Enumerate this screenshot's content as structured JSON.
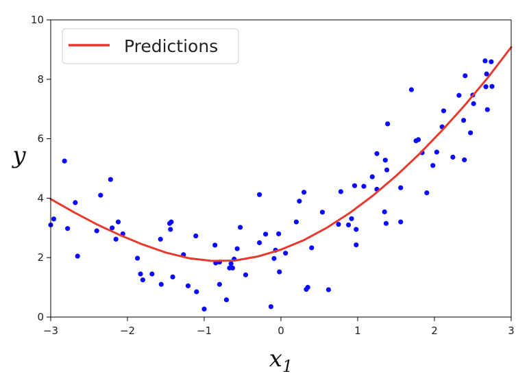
{
  "chart_data": {
    "type": "scatter",
    "title": "",
    "xlabel": "x",
    "xlabel_sub": "1",
    "ylabel": "y",
    "xlim": [
      -3,
      3
    ],
    "ylim": [
      0,
      10
    ],
    "xticks": [
      -3,
      -2,
      -1,
      0,
      1,
      2,
      3
    ],
    "yticks": [
      0,
      2,
      4,
      6,
      8,
      10
    ],
    "xtick_labels": [
      "−3",
      "−2",
      "−1",
      "0",
      "1",
      "2",
      "3"
    ],
    "ytick_labels": [
      "0",
      "2",
      "4",
      "6",
      "8",
      "10"
    ],
    "grid": false,
    "legend": {
      "position": "top-left",
      "entries": [
        "Predictions"
      ]
    },
    "colors": {
      "points": "#0a0aff",
      "line": "#e8392e"
    },
    "series": [
      {
        "kind": "points",
        "points": [
          [
            -3.0,
            3.1
          ],
          [
            -2.96,
            3.3
          ],
          [
            -2.82,
            5.25
          ],
          [
            -2.78,
            2.98
          ],
          [
            -2.68,
            3.85
          ],
          [
            -2.65,
            2.05
          ],
          [
            -2.4,
            2.9
          ],
          [
            -2.35,
            4.1
          ],
          [
            -2.22,
            4.63
          ],
          [
            -2.2,
            3.0
          ],
          [
            -2.15,
            2.62
          ],
          [
            -2.12,
            3.2
          ],
          [
            -2.06,
            2.8
          ],
          [
            -1.87,
            1.98
          ],
          [
            -1.83,
            1.45
          ],
          [
            -1.8,
            1.25
          ],
          [
            -1.68,
            1.45
          ],
          [
            -1.57,
            2.62
          ],
          [
            -1.56,
            1.1
          ],
          [
            -1.45,
            3.15
          ],
          [
            -1.43,
            3.2
          ],
          [
            -1.44,
            2.95
          ],
          [
            -1.41,
            1.35
          ],
          [
            -1.27,
            2.1
          ],
          [
            -1.21,
            1.05
          ],
          [
            -1.11,
            2.73
          ],
          [
            -1.1,
            0.85
          ],
          [
            -1.0,
            0.27
          ],
          [
            -0.86,
            2.42
          ],
          [
            -0.85,
            1.82
          ],
          [
            -0.8,
            1.85
          ],
          [
            -0.8,
            1.1
          ],
          [
            -0.71,
            0.58
          ],
          [
            -0.67,
            1.65
          ],
          [
            -0.65,
            1.8
          ],
          [
            -0.63,
            1.65
          ],
          [
            -0.61,
            1.95
          ],
          [
            -0.57,
            2.3
          ],
          [
            -0.53,
            3.02
          ],
          [
            -0.46,
            1.42
          ],
          [
            -0.28,
            4.12
          ],
          [
            -0.28,
            2.5
          ],
          [
            -0.2,
            2.79
          ],
          [
            -0.13,
            0.35
          ],
          [
            -0.09,
            1.97
          ],
          [
            -0.07,
            2.25
          ],
          [
            -0.03,
            2.8
          ],
          [
            -0.02,
            1.52
          ],
          [
            0.06,
            2.15
          ],
          [
            0.2,
            3.2
          ],
          [
            0.24,
            3.9
          ],
          [
            0.3,
            4.2
          ],
          [
            0.33,
            0.93
          ],
          [
            0.35,
            1.0
          ],
          [
            0.4,
            2.33
          ],
          [
            0.54,
            3.53
          ],
          [
            0.62,
            0.92
          ],
          [
            0.75,
            3.12
          ],
          [
            0.78,
            4.22
          ],
          [
            0.88,
            3.1
          ],
          [
            0.92,
            3.31
          ],
          [
            0.96,
            4.42
          ],
          [
            0.98,
            2.43
          ],
          [
            0.98,
            2.95
          ],
          [
            1.08,
            4.4
          ],
          [
            1.19,
            4.72
          ],
          [
            1.25,
            5.5
          ],
          [
            1.25,
            4.3
          ],
          [
            1.35,
            3.54
          ],
          [
            1.36,
            5.28
          ],
          [
            1.37,
            3.15
          ],
          [
            1.38,
            4.95
          ],
          [
            1.39,
            6.5
          ],
          [
            1.56,
            4.35
          ],
          [
            1.56,
            3.2
          ],
          [
            1.7,
            7.65
          ],
          [
            1.76,
            5.93
          ],
          [
            1.79,
            5.97
          ],
          [
            1.84,
            5.53
          ],
          [
            1.9,
            4.18
          ],
          [
            1.98,
            5.1
          ],
          [
            2.03,
            5.55
          ],
          [
            2.1,
            6.4
          ],
          [
            2.12,
            6.94
          ],
          [
            2.24,
            5.38
          ],
          [
            2.32,
            7.46
          ],
          [
            2.38,
            6.62
          ],
          [
            2.39,
            5.29
          ],
          [
            2.4,
            8.12
          ],
          [
            2.47,
            6.2
          ],
          [
            2.5,
            7.47
          ],
          [
            2.51,
            7.18
          ],
          [
            2.66,
            8.62
          ],
          [
            2.67,
            7.75
          ],
          [
            2.68,
            8.18
          ],
          [
            2.69,
            6.98
          ],
          [
            2.74,
            8.59
          ],
          [
            2.75,
            7.76
          ]
        ]
      },
      {
        "kind": "line",
        "name": "Predictions",
        "x": [
          -3.0,
          -2.7,
          -2.4,
          -2.1,
          -1.8,
          -1.5,
          -1.2,
          -0.9,
          -0.6,
          -0.3,
          0.0,
          0.3,
          0.6,
          0.9,
          1.2,
          1.5,
          1.8,
          2.1,
          2.4,
          2.7,
          3.0
        ],
        "y": [
          3.97,
          3.53,
          3.12,
          2.76,
          2.44,
          2.17,
          1.98,
          1.89,
          1.9,
          2.04,
          2.27,
          2.59,
          3.01,
          3.51,
          4.09,
          4.75,
          5.48,
          6.28,
          7.14,
          8.07,
          9.08
        ]
      }
    ]
  }
}
